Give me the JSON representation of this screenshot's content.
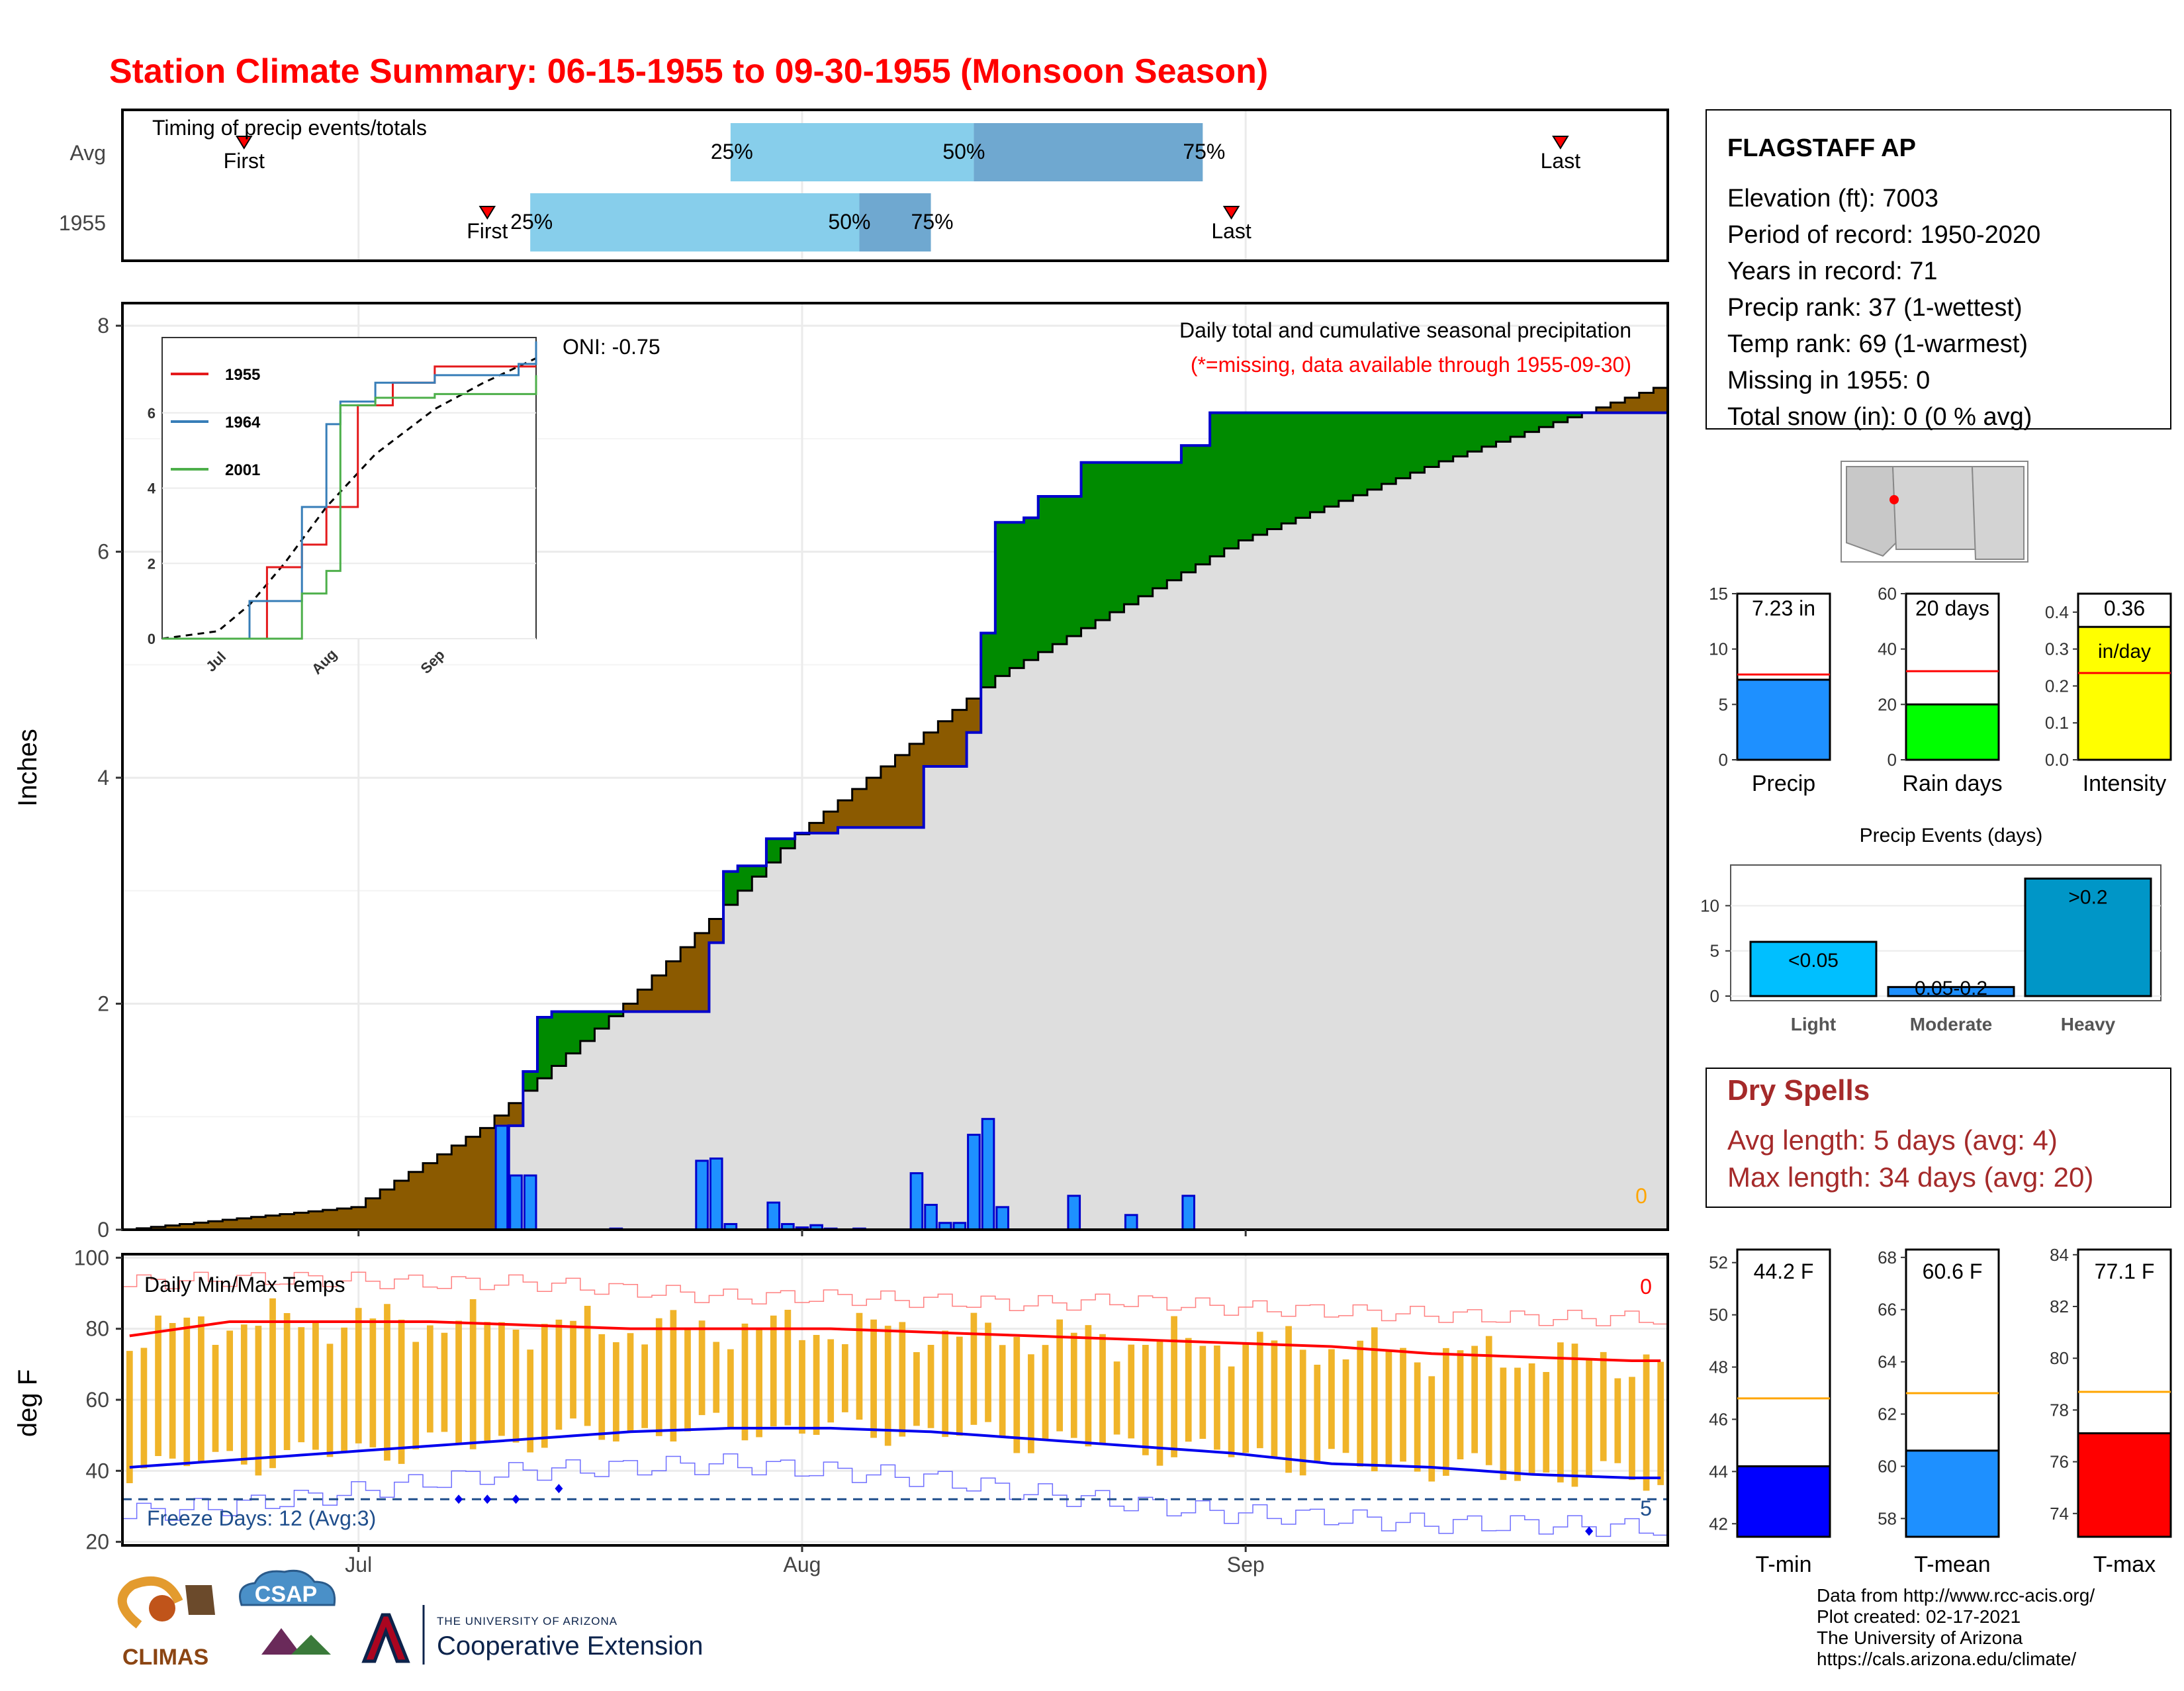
{
  "title": "Station Climate Summary: 06-15-1955 to 09-30-1955 (Monsoon Season)",
  "colors": {
    "title": "#ff0000",
    "precip_blue": "#1e90ff",
    "green": "#008b00",
    "brown": "#8b5a00",
    "gray_fill": "#dedede",
    "tmax": "#ff0000",
    "tmin": "#0000ee",
    "bars": "#f0b429",
    "freeze": "#1f4e8c",
    "dry_spells": "#a52a2a"
  },
  "months": [
    "Jul",
    "Aug",
    "Sep"
  ],
  "timing": {
    "title": "Timing of precip events/totals",
    "rows": [
      "Avg",
      "1955"
    ],
    "first_label": "First",
    "last_label": "Last",
    "p25": "25%",
    "p50": "50%",
    "p75": "75%",
    "avg": {
      "first": "06-23",
      "p25": "07-27",
      "p50": "08-13",
      "p75": "08-29",
      "last": "09-23"
    },
    "y1955": {
      "first": "07-10",
      "p25": "07-13",
      "p50": "08-05",
      "p75": "08-10",
      "last": "08-31"
    }
  },
  "main": {
    "ylabel": "Inches",
    "header1": "Daily total and cumulative seasonal precipitation",
    "header2": "(*=missing, data available through 1955-09-30)",
    "oni": "ONI: -0.75",
    "missing_count": "0",
    "yticks": [
      "0",
      "2",
      "4",
      "6",
      "8"
    ]
  },
  "inset": {
    "yticks": [
      "0",
      "2",
      "4",
      "6"
    ],
    "xticks": [
      "Jul",
      "Aug",
      "Sep"
    ],
    "series": [
      {
        "name": "1955",
        "color": "#e41a1c"
      },
      {
        "name": "1964",
        "color": "#377eb8"
      },
      {
        "name": "2001",
        "color": "#4daf4a"
      }
    ]
  },
  "temps": {
    "label": "Daily Min/Max Temps",
    "ylabel": "deg F",
    "yticks": [
      "20",
      "40",
      "60",
      "80",
      "100"
    ],
    "freeze": "Freeze Days: 12 (Avg:3)",
    "missing_top": "0",
    "count_bottom": "5"
  },
  "station": {
    "name": "FLAGSTAFF AP",
    "lines": [
      "Elevation (ft): 7003",
      "Period of record: 1950-2020",
      "Years in record: 71",
      "Precip rank: 37 (1-wettest)",
      "Temp rank: 69 (1-warmest)",
      "Missing in 1955: 0",
      "Total snow (in): 0 (0 % avg)"
    ]
  },
  "mini_bars": [
    {
      "label": "Precip",
      "value_text": "7.23 in",
      "value": 7.23,
      "avg": 7.7,
      "ymax": 15,
      "yticks": [
        "0",
        "5",
        "10",
        "15"
      ],
      "color": "#1e90ff",
      "avg_color": "#ff0000"
    },
    {
      "label": "Rain days",
      "value_text": "20 days",
      "value": 20,
      "avg": 32,
      "ymax": 60,
      "yticks": [
        "0",
        "20",
        "40",
        "60"
      ],
      "color": "#00ff00",
      "avg_color": "#ff0000"
    },
    {
      "label": "Intensity",
      "value_text": "0.36",
      "unit_text": "in/day",
      "value": 0.36,
      "avg": 0.235,
      "ymax": 0.45,
      "yticks": [
        "0.0",
        "0.1",
        "0.2",
        "0.3",
        "0.4"
      ],
      "color": "#ffff00",
      "avg_color": "#ff0000"
    }
  ],
  "events": {
    "title": "Precip Events (days)",
    "categories": [
      "Light",
      "Moderate",
      "Heavy"
    ],
    "bar_labels": [
      "<0.05",
      "0.05-0.2",
      ">0.2"
    ],
    "values": [
      6,
      1,
      13
    ],
    "colors": [
      "#00bfff",
      "#1e90ff",
      "#0096c7"
    ],
    "yticks": [
      "0",
      "5",
      "10"
    ]
  },
  "dry_spells": {
    "title": "Dry Spells",
    "avg_line": "Avg length: 5 days (avg: 4)",
    "max_line": "Max length: 34 days (avg: 20)"
  },
  "temp_bars": [
    {
      "label": "T-min",
      "value_text": "44.2 F",
      "value": 44.2,
      "avg": 46.8,
      "ymin": 41.5,
      "ymax": 52.5,
      "yticks": [
        "42",
        "44",
        "46",
        "48",
        "50",
        "52"
      ],
      "color": "#0000ff"
    },
    {
      "label": "T-mean",
      "value_text": "60.6 F",
      "value": 60.6,
      "avg": 62.8,
      "ymin": 57.3,
      "ymax": 68.3,
      "yticks": [
        "58",
        "60",
        "62",
        "64",
        "66",
        "68"
      ],
      "color": "#1e90ff"
    },
    {
      "label": "T-max",
      "value_text": "77.1 F",
      "value": 77.1,
      "avg": 78.7,
      "ymin": 73.1,
      "ymax": 84.2,
      "yticks": [
        "74",
        "76",
        "78",
        "80",
        "82",
        "84"
      ],
      "color": "#ff0000"
    }
  ],
  "footer": {
    "lines": [
      "Data from http://www.rcc-acis.org/",
      "Plot created: 02-17-2021",
      "The University of Arizona",
      "https://cals.arizona.edu/climate/"
    ],
    "climas": "CLIMAS",
    "csap": "CSAP",
    "ua_small": "THE UNIVERSITY OF ARIZONA",
    "ua_big": "Cooperative Extension"
  },
  "chart_data": [
    {
      "type": "area",
      "title": "Daily total and cumulative seasonal precipitation",
      "ylabel": "Inches",
      "ylim": [
        0,
        8.2
      ],
      "x_range": [
        "06-15",
        "09-30"
      ],
      "series": [
        {
          "name": "1955 cumulative",
          "dates": [
            "06-15",
            "07-11",
            "07-12",
            "07-13",
            "07-14",
            "07-15",
            "07-16",
            "07-17",
            "07-18",
            "07-25",
            "07-26",
            "07-27",
            "07-28",
            "07-29",
            "07-30",
            "08-01",
            "08-04",
            "08-09",
            "08-10",
            "08-13",
            "08-14",
            "08-15",
            "08-17",
            "08-18",
            "08-19",
            "08-21",
            "08-22",
            "08-24",
            "08-25",
            "08-28",
            "08-29",
            "08-30",
            "08-31",
            "09-30"
          ],
          "values": [
            0,
            0,
            0.92,
            1.4,
            1.88,
            1.93,
            1.93,
            1.93,
            1.93,
            1.93,
            2.54,
            3.17,
            3.22,
            3.22,
            3.46,
            3.51,
            3.56,
            3.56,
            4.1,
            4.4,
            5.28,
            6.26,
            6.3,
            6.49,
            6.49,
            6.79,
            6.79,
            6.79,
            6.79,
            6.94,
            6.94,
            7.23,
            7.23,
            7.23
          ]
        },
        {
          "name": "Average cumulative",
          "dates": [
            "06-15",
            "07-01",
            "07-10",
            "07-20",
            "08-01",
            "08-15",
            "09-01",
            "09-15",
            "09-30"
          ],
          "values": [
            0,
            0.2,
            0.9,
            2.0,
            3.5,
            4.9,
            6.1,
            6.8,
            7.45
          ]
        },
        {
          "name": "Daily precip",
          "dates": [
            "07-11",
            "07-12",
            "07-13",
            "07-19",
            "07-25",
            "07-26",
            "07-27",
            "07-30",
            "07-31",
            "08-01",
            "08-02",
            "08-03",
            "08-05",
            "08-09",
            "08-10",
            "08-11",
            "08-12",
            "08-13",
            "08-14",
            "08-15",
            "08-16",
            "08-17",
            "08-18",
            "08-19",
            "08-20",
            "08-21",
            "08-22",
            "08-23",
            "08-24",
            "08-25",
            "08-26",
            "08-27",
            "08-28",
            "08-29",
            "08-30",
            "08-31",
            "09-01"
          ],
          "values": [
            0.92,
            0.48,
            0.48,
            0.01,
            0.61,
            0.63,
            0.05,
            0.24,
            0.05,
            0.02,
            0.04,
            0.01,
            0.01,
            0.5,
            0.22,
            0.06,
            0.06,
            0.84,
            0.98,
            0.2,
            0,
            0,
            0,
            0,
            0.3,
            0,
            0,
            0,
            0.13,
            0,
            0,
            0,
            0.3,
            0,
            0,
            0,
            0
          ]
        }
      ]
    },
    {
      "type": "line",
      "title": "",
      "series": [
        {
          "name": "1955",
          "x": [
            "06-15",
            "07-10",
            "07-15",
            "07-25",
            "08-01",
            "08-10",
            "08-20",
            "09-01",
            "09-30"
          ],
          "values": [
            0,
            0,
            1.9,
            2.5,
            3.5,
            6.2,
            6.8,
            7.23,
            7.23
          ]
        },
        {
          "name": "1964",
          "x": [
            "06-15",
            "07-05",
            "07-10",
            "07-25",
            "08-01",
            "08-05",
            "08-15",
            "09-01",
            "09-25",
            "09-30"
          ],
          "values": [
            0,
            0,
            1.0,
            3.5,
            5.7,
            6.3,
            6.8,
            7.0,
            7.3,
            7.9
          ]
        },
        {
          "name": "2001",
          "x": [
            "06-15",
            "07-15",
            "07-25",
            "08-01",
            "08-05",
            "08-15",
            "09-01",
            "09-30"
          ],
          "values": [
            0,
            0,
            1.2,
            1.8,
            6.2,
            6.4,
            6.5,
            7.0
          ]
        }
      ]
    },
    {
      "type": "bar",
      "title": "Daily Min/Max Temps",
      "ylabel": "deg F",
      "ylim": [
        20,
        100
      ],
      "series": [
        {
          "name": "Avg max",
          "values": [
            78,
            82,
            82,
            82,
            81,
            80,
            80,
            80,
            79,
            78,
            77,
            76,
            75,
            73,
            72,
            71
          ]
        },
        {
          "name": "Avg min",
          "values": [
            41,
            43,
            45,
            47,
            49,
            51,
            52,
            52,
            51,
            49,
            47,
            45,
            42,
            41,
            39,
            38
          ]
        },
        {
          "name": "Record max",
          "values": [
            93,
            94,
            94,
            93,
            93,
            91,
            89,
            89,
            88,
            87,
            88,
            86,
            85,
            84,
            83,
            83
          ]
        },
        {
          "name": "Record min",
          "values": [
            28,
            30,
            33,
            37,
            40,
            41,
            42,
            40,
            38,
            34,
            31,
            28,
            27,
            25,
            25,
            24
          ]
        }
      ],
      "categories": [
        "06-15",
        "06-22",
        "06-29",
        "07-06",
        "07-13",
        "07-20",
        "07-27",
        "08-03",
        "08-10",
        "08-17",
        "08-24",
        "08-31",
        "09-07",
        "09-14",
        "09-21",
        "09-28"
      ]
    }
  ]
}
